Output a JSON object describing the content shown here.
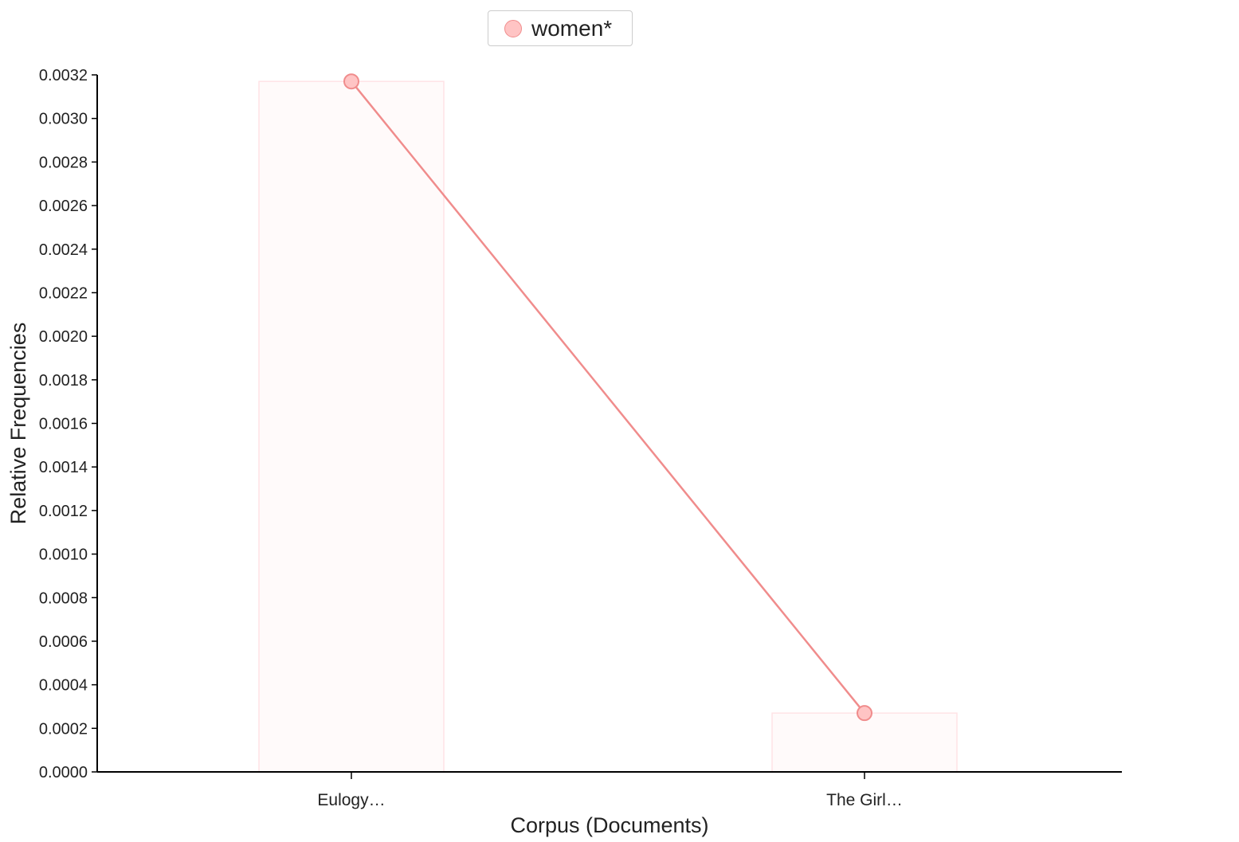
{
  "legend": {
    "label": "women*",
    "marker": "circle"
  },
  "chart_data": {
    "type": "line",
    "categories": [
      "Eulogy…",
      "The Girl…"
    ],
    "series": [
      {
        "name": "women*",
        "values": [
          0.00317,
          0.00027
        ]
      }
    ],
    "xlabel": "Corpus (Documents)",
    "ylabel": "Relative Frequencies",
    "ylim": [
      0,
      0.0032
    ],
    "yticks": [
      "0.0000",
      "0.0002",
      "0.0004",
      "0.0006",
      "0.0008",
      "0.0010",
      "0.0012",
      "0.0014",
      "0.0016",
      "0.0018",
      "0.0020",
      "0.0022",
      "0.0024",
      "0.0026",
      "0.0028",
      "0.0030",
      "0.0032"
    ],
    "grid": false,
    "legend_position": "top-center",
    "background_bars": true
  },
  "colors": {
    "series_stroke": "#f08c8c",
    "series_fill": "#ffc4c4",
    "bar_fill": "#fffafa",
    "bar_stroke": "#ffe3e6",
    "axis": "#000000"
  }
}
